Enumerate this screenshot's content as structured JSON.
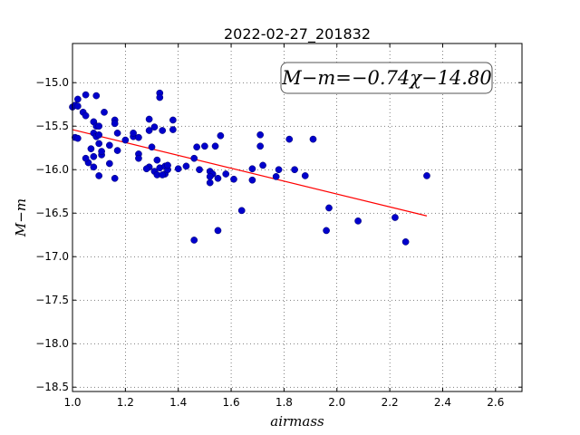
{
  "chart_data": {
    "type": "scatter",
    "title": "2022-02-27_201832",
    "xlabel": "airmass",
    "ylabel": "M−m",
    "xlim": [
      1.0,
      2.7
    ],
    "ylim": [
      -18.55,
      -14.55
    ],
    "xticks": [
      "1.0",
      "1.2",
      "1.4",
      "1.6",
      "1.8",
      "2.0",
      "2.2",
      "2.4",
      "2.6"
    ],
    "yticks": [
      "−15.0",
      "−15.5",
      "−16.0",
      "−16.5",
      "−17.0",
      "−17.5",
      "−18.0",
      "−18.5"
    ],
    "grid": true,
    "annotation": "M−m=−0.74χ−14.80",
    "fit": {
      "slope": -0.74,
      "intercept": -14.8,
      "x_range": [
        1.0,
        2.34
      ],
      "color": "#ff0000"
    },
    "marker_color": "#0000cc",
    "x": [
      1.0,
      1.01,
      1.02,
      1.02,
      1.01,
      1.02,
      1.05,
      1.09,
      1.04,
      1.05,
      1.08,
      1.09,
      1.1,
      1.08,
      1.09,
      1.12,
      1.1,
      1.14,
      1.16,
      1.16,
      1.17,
      1.1,
      1.07,
      1.08,
      1.11,
      1.06,
      1.08,
      1.11,
      1.05,
      1.1,
      1.14,
      1.17,
      1.16,
      1.2,
      1.23,
      1.23,
      1.25,
      1.25,
      1.25,
      1.29,
      1.29,
      1.29,
      1.28,
      1.31,
      1.3,
      1.31,
      1.33,
      1.33,
      1.34,
      1.33,
      1.35,
      1.35,
      1.32,
      1.36,
      1.32,
      1.38,
      1.38,
      1.36,
      1.34,
      1.4,
      1.43,
      1.46,
      1.47,
      1.48,
      1.5,
      1.52,
      1.54,
      1.52,
      1.53,
      1.56,
      1.55,
      1.52,
      1.58,
      1.61,
      1.55,
      1.46,
      1.64,
      1.68,
      1.71,
      1.71,
      1.72,
      1.68,
      1.78,
      1.77,
      1.82,
      1.84,
      1.88,
      1.91,
      1.96,
      1.97,
      2.08,
      2.22,
      2.26,
      2.34
    ],
    "y": [
      -15.28,
      -15.26,
      -15.27,
      -15.19,
      -15.63,
      -15.64,
      -15.14,
      -15.15,
      -15.34,
      -15.38,
      -15.45,
      -15.5,
      -15.5,
      -15.58,
      -15.62,
      -15.34,
      -15.6,
      -15.72,
      -15.43,
      -15.47,
      -15.58,
      -15.7,
      -15.76,
      -15.85,
      -15.83,
      -15.92,
      -15.97,
      -15.79,
      -15.87,
      -16.07,
      -15.93,
      -15.78,
      -16.1,
      -15.66,
      -15.62,
      -15.58,
      -15.63,
      -15.82,
      -15.87,
      -15.42,
      -15.55,
      -15.97,
      -15.99,
      -15.51,
      -15.74,
      -16.02,
      -15.12,
      -15.17,
      -15.55,
      -15.98,
      -15.96,
      -16.05,
      -15.89,
      -16.0,
      -16.06,
      -15.43,
      -15.54,
      -15.95,
      -16.06,
      -15.99,
      -15.96,
      -15.87,
      -15.74,
      -16.0,
      -15.73,
      -16.02,
      -15.73,
      -16.15,
      -16.05,
      -15.61,
      -16.1,
      -16.08,
      -16.05,
      -16.11,
      -16.7,
      -16.81,
      -16.47,
      -15.99,
      -15.6,
      -15.73,
      -15.95,
      -16.12,
      -16.0,
      -16.08,
      -15.65,
      -16.0,
      -16.07,
      -15.65,
      -16.7,
      -16.44,
      -16.59,
      -16.55,
      -16.83,
      -16.07
    ]
  }
}
